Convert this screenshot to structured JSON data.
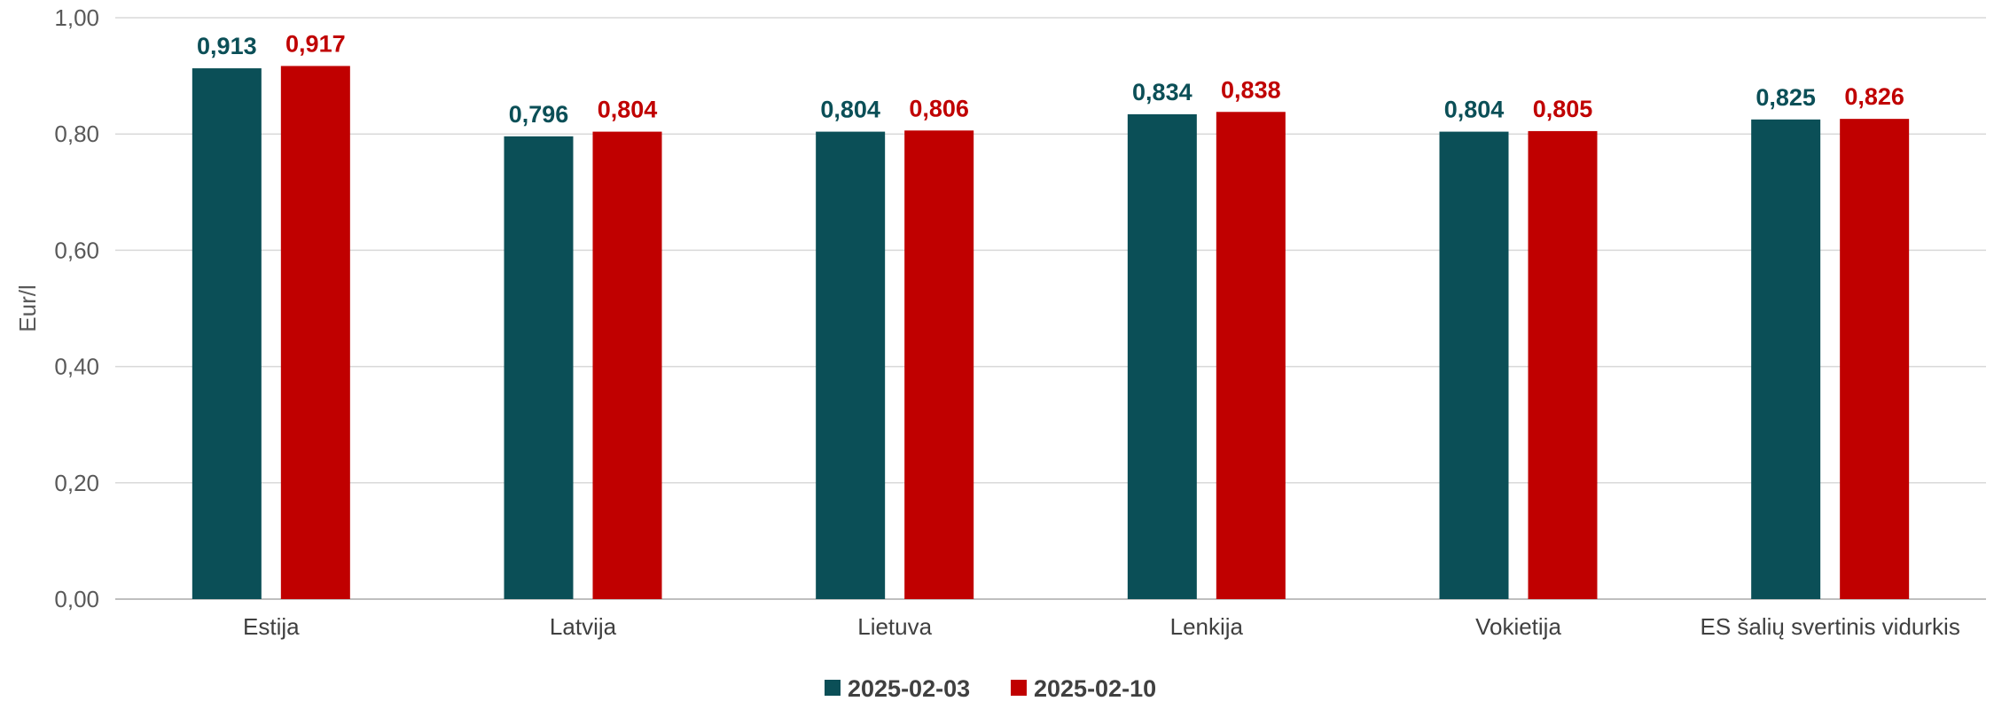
{
  "chart_data": {
    "type": "bar",
    "title": "",
    "xlabel": "",
    "ylabel": "Eur/l",
    "ylim": [
      0,
      1.0
    ],
    "yticks": [
      "0,00",
      "0,20",
      "0,40",
      "0,60",
      "0,80",
      "1,00"
    ],
    "ytick_values": [
      0,
      0.2,
      0.4,
      0.6,
      0.8,
      1.0
    ],
    "grid": true,
    "legend_position": "bottom",
    "categories": [
      "Estija",
      "Latvija",
      "Lietuva",
      "Lenkija",
      "Vokietija",
      "ES šalių svertinis vidurkis"
    ],
    "series": [
      {
        "name": "2025-02-03",
        "color": "#0b4f57",
        "values": [
          0.913,
          0.796,
          0.804,
          0.834,
          0.804,
          0.825
        ],
        "labels": [
          "0,913",
          "0,796",
          "0,804",
          "0,834",
          "0,804",
          "0,825"
        ]
      },
      {
        "name": "2025-02-10",
        "color": "#c00000",
        "values": [
          0.917,
          0.804,
          0.806,
          0.838,
          0.805,
          0.826
        ],
        "labels": [
          "0,917",
          "0,804",
          "0,806",
          "0,838",
          "0,805",
          "0,826"
        ]
      }
    ]
  }
}
